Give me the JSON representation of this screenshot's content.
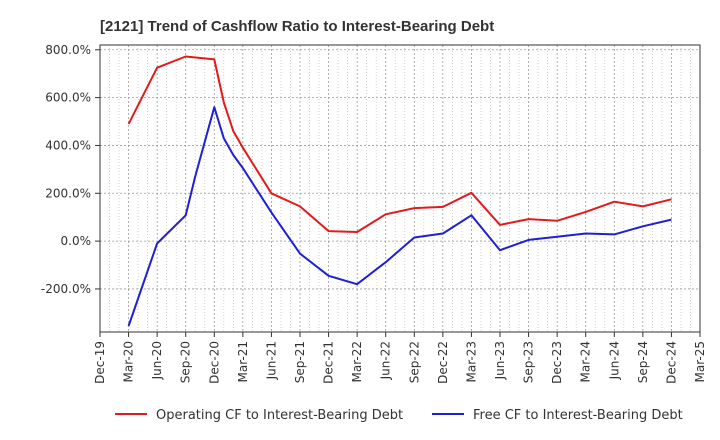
{
  "chart_data": {
    "type": "line",
    "title": "[2121]  Trend of Cashflow Ratio to Interest-Bearing Debt",
    "xlabel": "",
    "ylabel": "",
    "x_ticks": [
      "Dec-19",
      "Mar-20",
      "Jun-20",
      "Sep-20",
      "Dec-20",
      "Mar-21",
      "Jun-21",
      "Sep-21",
      "Dec-21",
      "Mar-22",
      "Jun-22",
      "Sep-22",
      "Dec-22",
      "Mar-23",
      "Jun-23",
      "Sep-23",
      "Dec-23",
      "Mar-24",
      "Jun-24",
      "Sep-24",
      "Dec-24",
      "Mar-25"
    ],
    "y_ticks": [
      "800.0%",
      "600.0%",
      "400.0%",
      "200.0%",
      "0.0%",
      "-200.0%"
    ],
    "y_tick_values": [
      800,
      600,
      400,
      200,
      0,
      -200
    ],
    "ylim": [
      -380,
      820
    ],
    "grid": true,
    "legend_position": "bottom",
    "series": [
      {
        "name": "Operating CF to Interest-Bearing Debt",
        "color": "#e31a1c",
        "points": [
          [
            "Mar-20",
            490
          ],
          [
            "Jun-20",
            725
          ],
          [
            "Sep-20",
            772
          ],
          [
            "Dec-20",
            760
          ],
          [
            "Jan-21",
            580
          ],
          [
            "Feb-21",
            460
          ],
          [
            "Mar-21",
            390
          ],
          [
            "Jun-21",
            200
          ],
          [
            "Sep-21",
            145
          ],
          [
            "Dec-21",
            42
          ],
          [
            "Mar-22",
            38
          ],
          [
            "Jun-22",
            112
          ],
          [
            "Sep-22",
            138
          ],
          [
            "Dec-22",
            143
          ],
          [
            "Mar-23",
            202
          ],
          [
            "Jun-23",
            68
          ],
          [
            "Sep-23",
            92
          ],
          [
            "Dec-23",
            85
          ],
          [
            "Mar-24",
            122
          ],
          [
            "Jun-24",
            165
          ],
          [
            "Sep-24",
            145
          ],
          [
            "Dec-24",
            175
          ]
        ]
      },
      {
        "name": "Free CF to Interest-Bearing Debt",
        "color": "#1f1fd6",
        "points": [
          [
            "Mar-20",
            -355
          ],
          [
            "Jun-20",
            -10
          ],
          [
            "Sep-20",
            108
          ],
          [
            "Oct-20",
            270
          ],
          [
            "Dec-20",
            560
          ],
          [
            "Jan-21",
            430
          ],
          [
            "Feb-21",
            360
          ],
          [
            "Mar-21",
            305
          ],
          [
            "Jun-21",
            120
          ],
          [
            "Sep-21",
            -52
          ],
          [
            "Dec-21",
            -145
          ],
          [
            "Mar-22",
            -180
          ],
          [
            "Jun-22",
            -88
          ],
          [
            "Sep-22",
            15
          ],
          [
            "Dec-22",
            32
          ],
          [
            "Mar-23",
            108
          ],
          [
            "Jun-23",
            -38
          ],
          [
            "Sep-23",
            5
          ],
          [
            "Dec-23",
            18
          ],
          [
            "Mar-24",
            32
          ],
          [
            "Jun-24",
            28
          ],
          [
            "Sep-24",
            62
          ],
          [
            "Dec-24",
            90
          ]
        ]
      }
    ]
  }
}
